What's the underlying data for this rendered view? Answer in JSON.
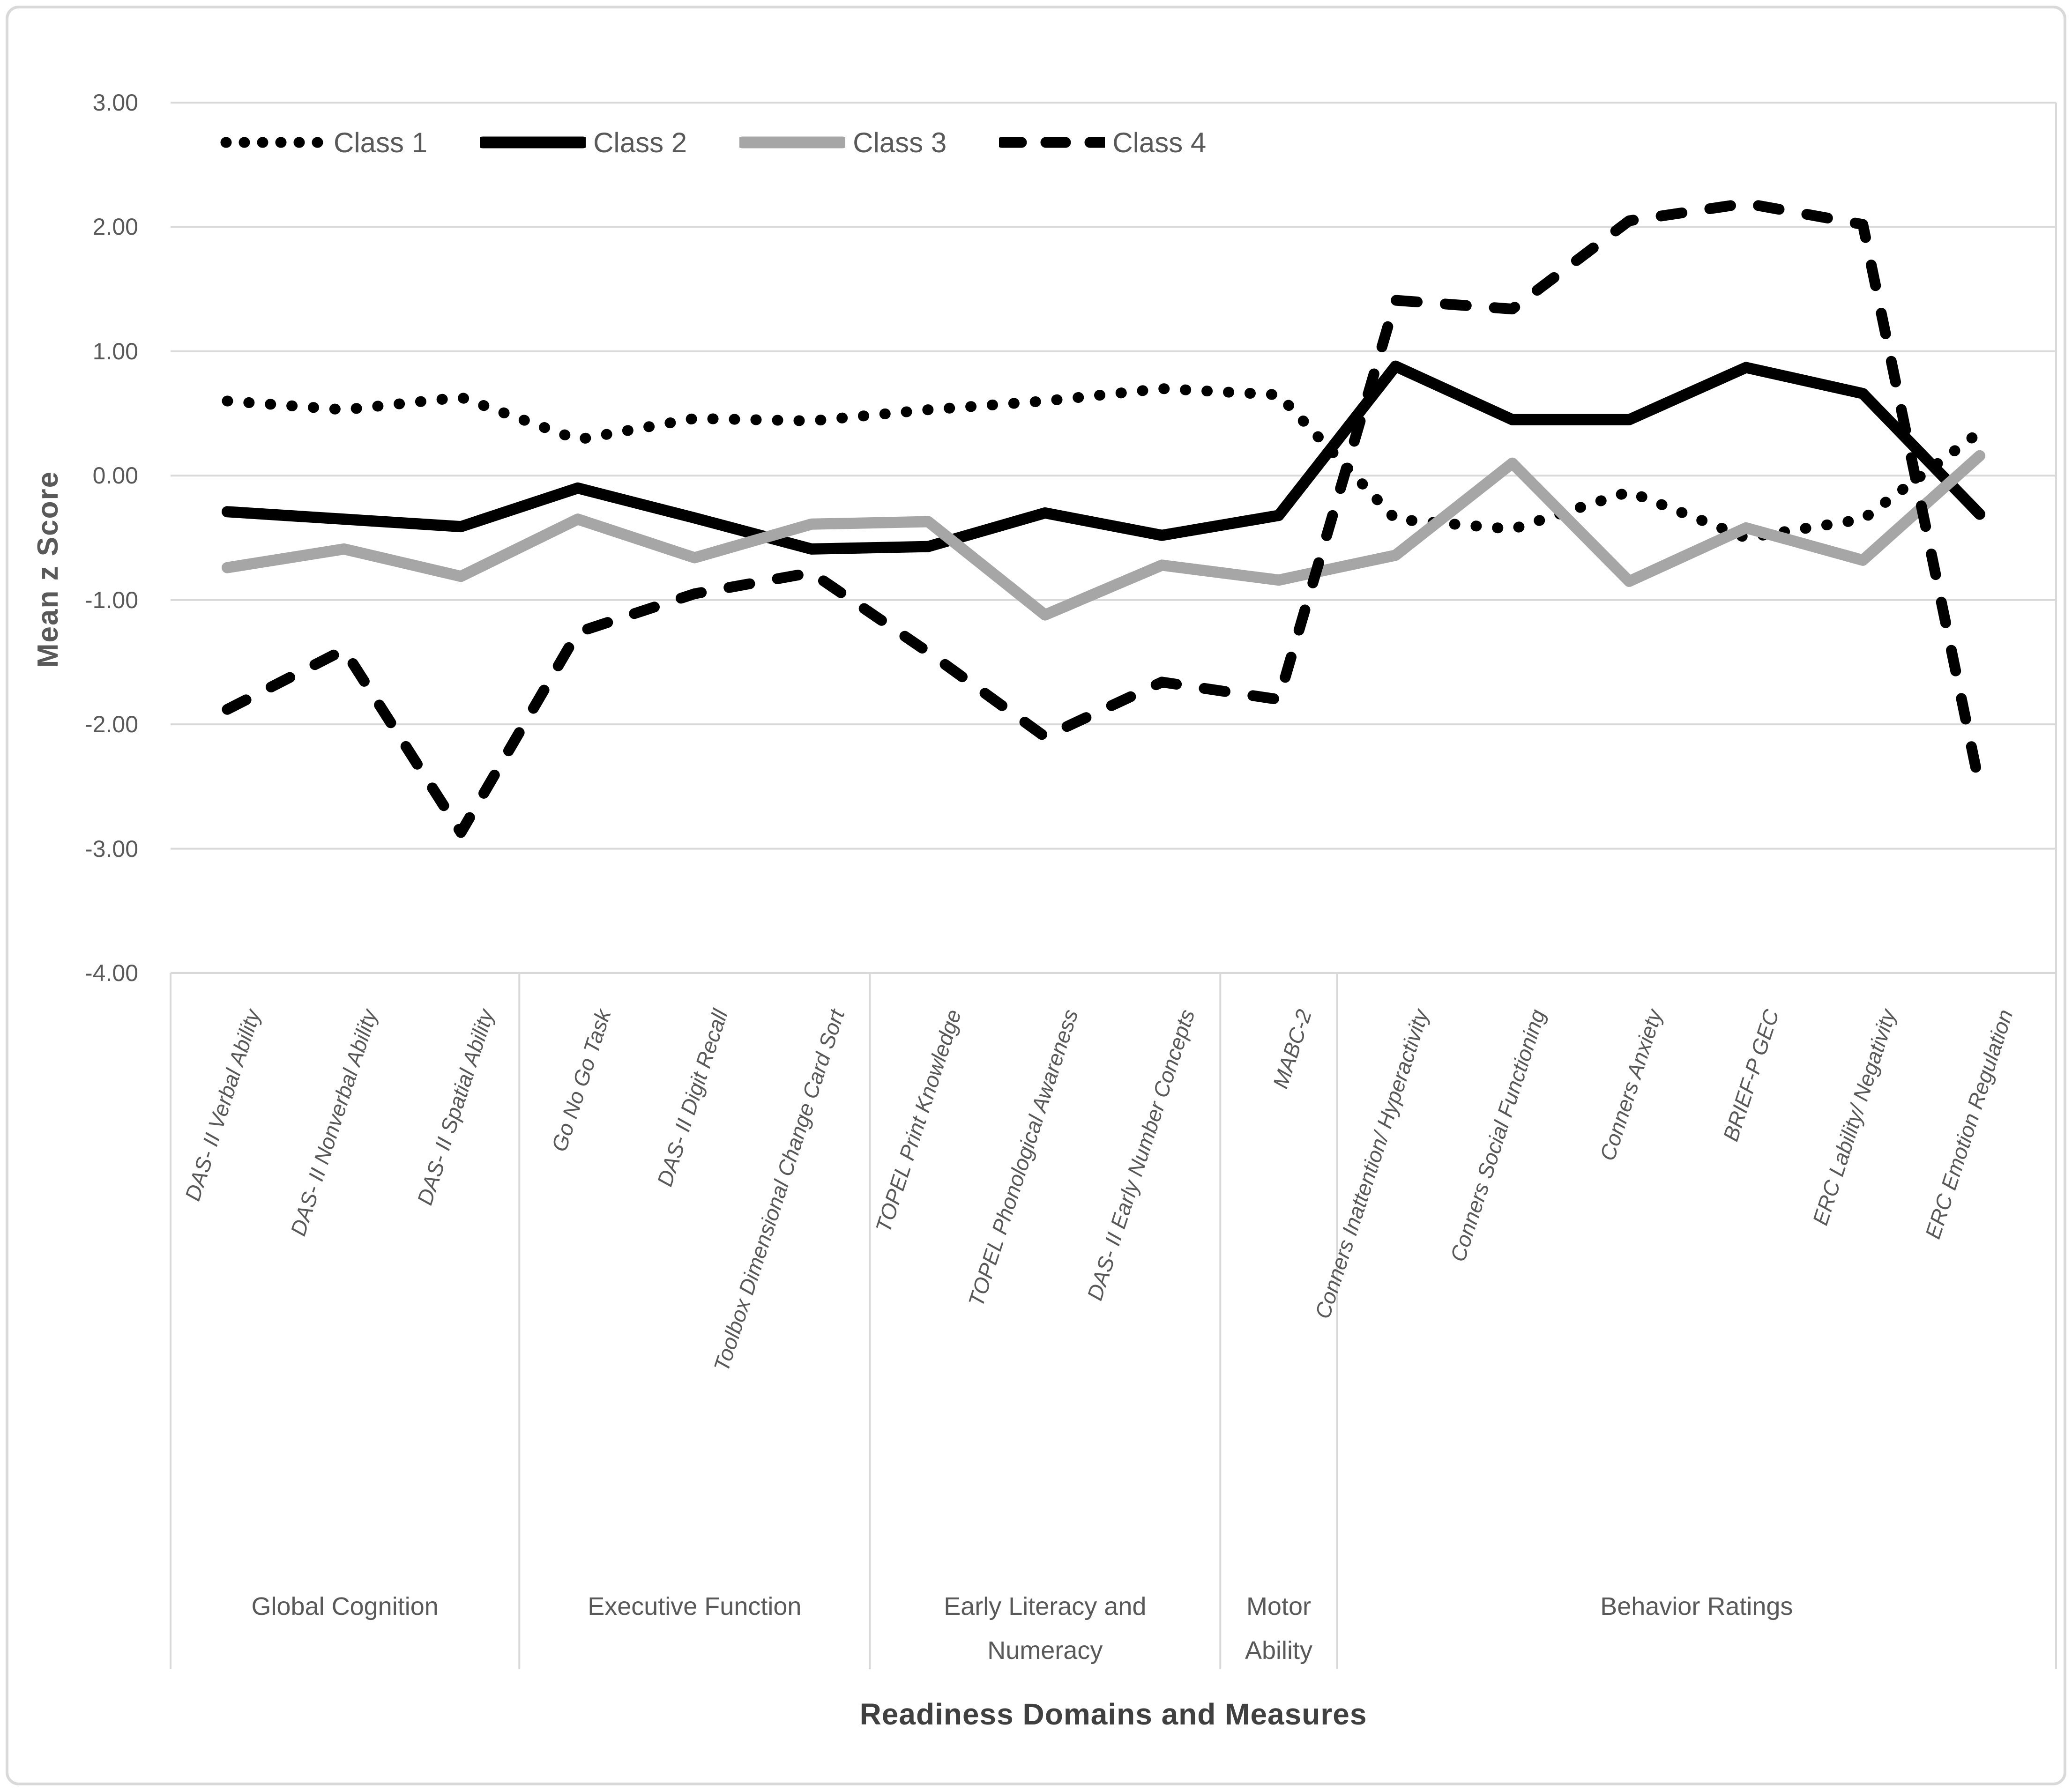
{
  "figure": {
    "background": "#ffffff",
    "border_color": "#d9d9d9"
  },
  "colors": {
    "series_black": "#000000",
    "series_gray": "#a6a6a6",
    "gridline": "#d9d9d9",
    "text": "#595959",
    "axis_title_text": "#404040"
  },
  "y_axis": {
    "title": "Mean z  Score",
    "tick_labels": [
      "3.00",
      "2.00",
      "1.00",
      "0.00",
      "-1.00",
      "-2.00",
      "-3.00",
      "-4.00"
    ],
    "tick_values": [
      3,
      2,
      1,
      0,
      -1,
      -2,
      -3,
      -4
    ]
  },
  "x_axis": {
    "title": "Readiness Domains and Measures"
  },
  "legend": {
    "items": [
      {
        "label": "Class 1",
        "dash": "dot",
        "color": "#000000"
      },
      {
        "label": "Class 2",
        "dash": "solid",
        "color": "#000000"
      },
      {
        "label": "Class 3",
        "dash": "solid",
        "color": "#a6a6a6"
      },
      {
        "label": "Class 4",
        "dash": "dash",
        "color": "#000000"
      }
    ]
  },
  "chart_data": {
    "type": "line",
    "title": "",
    "xlabel": "Readiness Domains and Measures",
    "ylabel": "Mean z  Score",
    "ylim": [
      -4,
      3
    ],
    "grid": "horizontal",
    "legend_position": "top",
    "categories": [
      "DAS- II Verbal Ability",
      "DAS- II Nonverbal Ability",
      "DAS- II Spatial Ability",
      "Go No Go Task",
      "DAS- II Digit Recall",
      "Toolbox Dimensional Change Card Sort",
      "TOPEL Print Knowledge",
      "TOPEL Phonological Awareness",
      "DAS- II Early Number Concepts",
      "MABC-2",
      "Conners Inattention/ Hyperactivity",
      "Conners Social Functioning",
      "Conners Anxiety",
      "BRIEF-P GEC",
      "ERC Lability/ Negativity",
      "ERC Emotion Regulation"
    ],
    "domains": [
      {
        "label": "Global Cognition",
        "lines": [
          "Global Cognition"
        ],
        "span": 3
      },
      {
        "label": "Executive Function",
        "lines": [
          "Executive Function"
        ],
        "span": 3
      },
      {
        "label": "Early Literacy and Numeracy",
        "lines": [
          "Early Literacy and",
          "Numeracy"
        ],
        "span": 3
      },
      {
        "label": "Motor Ability",
        "lines": [
          "Motor",
          "Ability"
        ],
        "span": 1
      },
      {
        "label": "Behavior Ratings",
        "lines": [
          "Behavior Ratings"
        ],
        "span": 6
      }
    ],
    "series": [
      {
        "name": "Class 1",
        "dash": "dot",
        "color": "#000000",
        "values": [
          0.6,
          0.53,
          0.63,
          0.29,
          0.46,
          0.44,
          0.53,
          0.6,
          0.7,
          0.65,
          -0.35,
          -0.43,
          -0.13,
          -0.5,
          -0.35,
          0.35
        ]
      },
      {
        "name": "Class 2",
        "dash": "solid",
        "color": "#000000",
        "values": [
          -0.29,
          -0.35,
          -0.41,
          -0.1,
          -0.34,
          -0.59,
          -0.57,
          -0.3,
          -0.48,
          -0.32,
          0.88,
          0.45,
          0.45,
          0.87,
          0.66,
          -0.31
        ]
      },
      {
        "name": "Class 3",
        "dash": "solid",
        "color": "#a6a6a6",
        "values": [
          -0.74,
          -0.59,
          -0.81,
          -0.35,
          -0.66,
          -0.39,
          -0.37,
          -1.12,
          -0.72,
          -0.84,
          -0.64,
          0.1,
          -0.85,
          -0.42,
          -0.68,
          0.16
        ]
      },
      {
        "name": "Class 4",
        "dash": "dash",
        "color": "#000000",
        "values": [
          -1.88,
          -1.4,
          -2.87,
          -1.26,
          -0.95,
          -0.78,
          -1.42,
          -2.1,
          -1.66,
          -1.8,
          1.41,
          1.34,
          2.05,
          2.19,
          2.02,
          -2.5
        ]
      }
    ]
  }
}
